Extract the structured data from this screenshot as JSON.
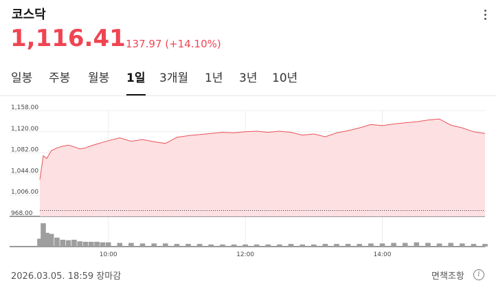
{
  "header": {
    "title": "코스닥",
    "more_icon": "more-vertical-icon",
    "price": "1,116.41",
    "change_arrow_icon": "triangle-up-icon",
    "change": "137.97 (+14.10%)"
  },
  "tabs": [
    {
      "label": "일봉",
      "active": false
    },
    {
      "label": "주봉",
      "active": false
    },
    {
      "label": "월봉",
      "active": false
    },
    {
      "label": "1일",
      "active": true
    },
    {
      "label": "3개월",
      "active": false
    },
    {
      "label": "1년",
      "active": false
    },
    {
      "label": "3년",
      "active": false
    },
    {
      "label": "10년",
      "active": false
    }
  ],
  "footer": {
    "date_status": "2026.03.05. 18:59 장마감",
    "disclaimer": "면책조항",
    "info_icon": "info-circle-icon"
  },
  "colors": {
    "up": "#f04452",
    "line": "#e8525a",
    "area": "#fde0e1",
    "volume": "#9e9e9e"
  },
  "chart_data": {
    "type": "area",
    "title": "",
    "xlabel": "",
    "ylabel": "",
    "yticks": [
      "1,158.00",
      "1,120.00",
      "1,082.00",
      "1,044.00",
      "1,006.00",
      "968.00"
    ],
    "ylim": [
      968,
      1158
    ],
    "xticks": [
      "10:00",
      "12:00",
      "14:00"
    ],
    "xlim": [
      "09:00",
      "15:30"
    ],
    "reference_line": 978.44,
    "grid": true,
    "series": [
      {
        "x": [
          "09:00",
          "09:03",
          "09:06",
          "09:10",
          "09:15",
          "09:20",
          "09:25",
          "09:30",
          "09:35",
          "09:40",
          "09:45",
          "09:50",
          "09:55",
          "10:00",
          "10:10",
          "10:20",
          "10:30",
          "10:40",
          "10:50",
          "11:00",
          "11:10",
          "11:20",
          "11:30",
          "11:40",
          "11:50",
          "12:00",
          "12:10",
          "12:20",
          "12:30",
          "12:40",
          "12:50",
          "13:00",
          "13:10",
          "13:20",
          "13:30",
          "13:40",
          "13:50",
          "14:00",
          "14:10",
          "14:20",
          "14:30",
          "14:40",
          "14:50",
          "15:00",
          "15:10",
          "15:20",
          "15:30"
        ],
        "values": [
          1034,
          1077,
          1072,
          1086,
          1091,
          1094,
          1096,
          1093,
          1089,
          1091,
          1095,
          1098,
          1101,
          1104,
          1109,
          1103,
          1106,
          1102,
          1099,
          1110,
          1113,
          1115,
          1117,
          1119,
          1118,
          1120,
          1121,
          1119,
          1121,
          1119,
          1114,
          1116,
          1111,
          1118,
          1122,
          1127,
          1133,
          1131,
          1134,
          1136,
          1138,
          1141,
          1143,
          1132,
          1127,
          1120,
          1117
        ]
      }
    ],
    "volume": [
      15,
      44,
      26,
      24,
      17,
      13,
      12,
      13,
      10,
      9,
      9,
      9,
      8,
      8,
      7,
      7,
      6,
      6,
      6,
      5,
      5,
      5,
      4,
      4,
      4,
      4,
      4,
      4,
      4,
      5,
      4,
      4,
      5,
      5,
      5,
      5,
      6,
      6,
      7,
      7,
      8,
      7,
      6,
      7,
      6,
      5,
      5
    ]
  }
}
